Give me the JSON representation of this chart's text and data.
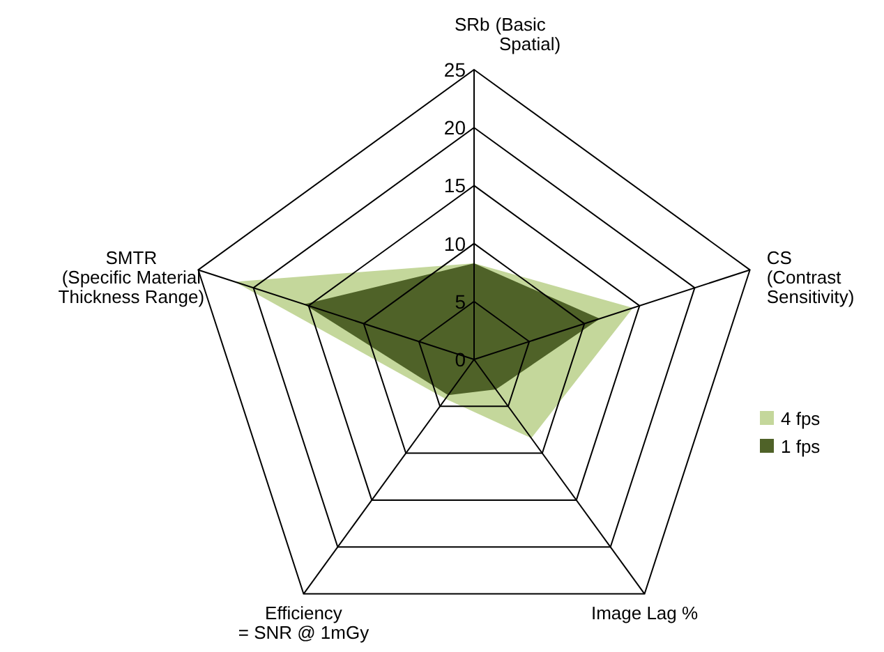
{
  "chart_data": {
    "type": "radar",
    "categories": [
      "SRb\n(Basic Spatial)",
      "CS\n(Contrast\nSensitivity)",
      "Image Lag %",
      "Efficiency\n= SNR @ 1mGy",
      "SMTR\n(Specific Material\nThickness Range)"
    ],
    "series": [
      {
        "name": "4 fps",
        "color": "#c4d79b",
        "values": [
          8.3,
          14.4,
          8.4,
          4.2,
          21.7
        ]
      },
      {
        "name": "1 fps",
        "color": "#4f6228",
        "values": [
          8.3,
          11.4,
          3.2,
          3.8,
          15.4
        ]
      }
    ],
    "ylim": [
      0,
      25
    ],
    "yticks": [
      0,
      5,
      10,
      15,
      20,
      25
    ],
    "grid": true,
    "legend": "right"
  }
}
